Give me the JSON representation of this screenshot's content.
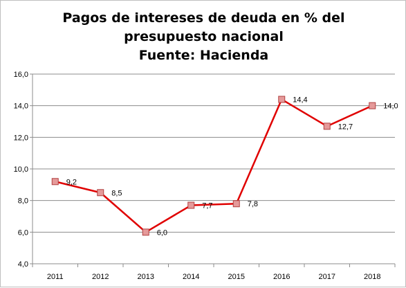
{
  "chart_data": {
    "type": "line",
    "title_lines": [
      "Pagos de intereses de deuda en % del",
      "presupuesto nacional",
      "Fuente: Hacienda"
    ],
    "categories": [
      "2011",
      "2012",
      "2013",
      "2014",
      "2015",
      "2016",
      "2017",
      "2018"
    ],
    "values": [
      9.2,
      8.5,
      6.0,
      7.7,
      7.8,
      14.4,
      12.7,
      14.0
    ],
    "data_labels": [
      "9,2",
      "8,5",
      "6,0",
      "7,7",
      "7,8",
      "14,4",
      "12,7",
      "14,0"
    ],
    "ylim": [
      4,
      16
    ],
    "yticks": [
      4,
      6,
      8,
      10,
      12,
      14,
      16
    ],
    "ytick_labels": [
      "4,0",
      "6,0",
      "8,0",
      "10,0",
      "12,0",
      "14,0",
      "16,0"
    ],
    "grid": true,
    "legend": "none",
    "line_color": "#E00000",
    "marker_fill": "#E59A9A",
    "marker_stroke": "#B04040"
  }
}
